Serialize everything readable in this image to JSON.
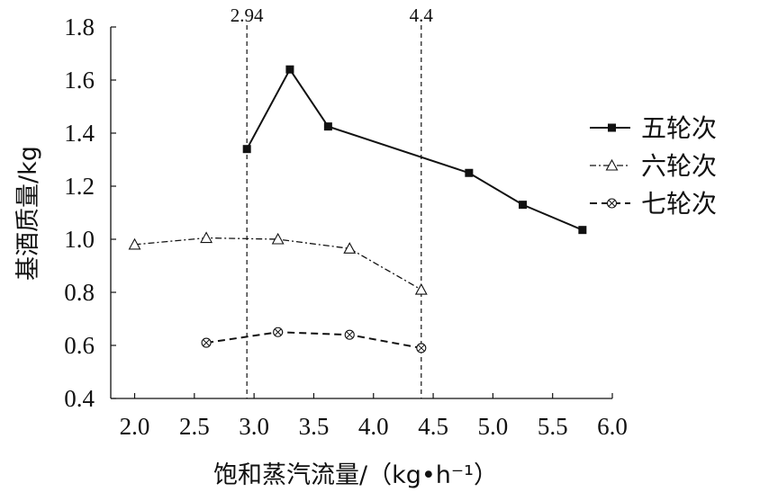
{
  "chart_data": {
    "type": "line",
    "title": "",
    "xlabel": "饱和蒸汽流量/（kg•h⁻¹）",
    "ylabel": "基酒质量/kg",
    "xlim": [
      1.8,
      6.0
    ],
    "ylim": [
      0.4,
      1.8
    ],
    "x_ticks": [
      "2.0",
      "2.5",
      "3.0",
      "3.5",
      "4.0",
      "4.5",
      "5.0",
      "5.5",
      "6.0"
    ],
    "y_ticks": [
      "0.4",
      "0.6",
      "0.8",
      "1.0",
      "1.2",
      "1.4",
      "1.6",
      "1.8"
    ],
    "grid": false,
    "legend_position": "right",
    "reference_lines": [
      {
        "x": 2.94,
        "label": "2.94"
      },
      {
        "x": 4.4,
        "label": "4.4"
      }
    ],
    "series": [
      {
        "name": "五轮次",
        "style": "solid",
        "marker": "filled-square",
        "x": [
          2.94,
          3.3,
          3.62,
          4.8,
          5.25,
          5.75
        ],
        "y": [
          1.34,
          1.64,
          1.425,
          1.25,
          1.13,
          1.035
        ]
      },
      {
        "name": "六轮次",
        "style": "dash-dot",
        "marker": "open-triangle",
        "x": [
          2.0,
          2.6,
          3.2,
          3.8,
          4.4
        ],
        "y": [
          0.98,
          1.005,
          1.0,
          0.965,
          0.81
        ]
      },
      {
        "name": "七轮次",
        "style": "dashed",
        "marker": "crossed-circle",
        "x": [
          2.6,
          3.2,
          3.8,
          4.4
        ],
        "y": [
          0.61,
          0.65,
          0.64,
          0.59
        ]
      }
    ]
  }
}
